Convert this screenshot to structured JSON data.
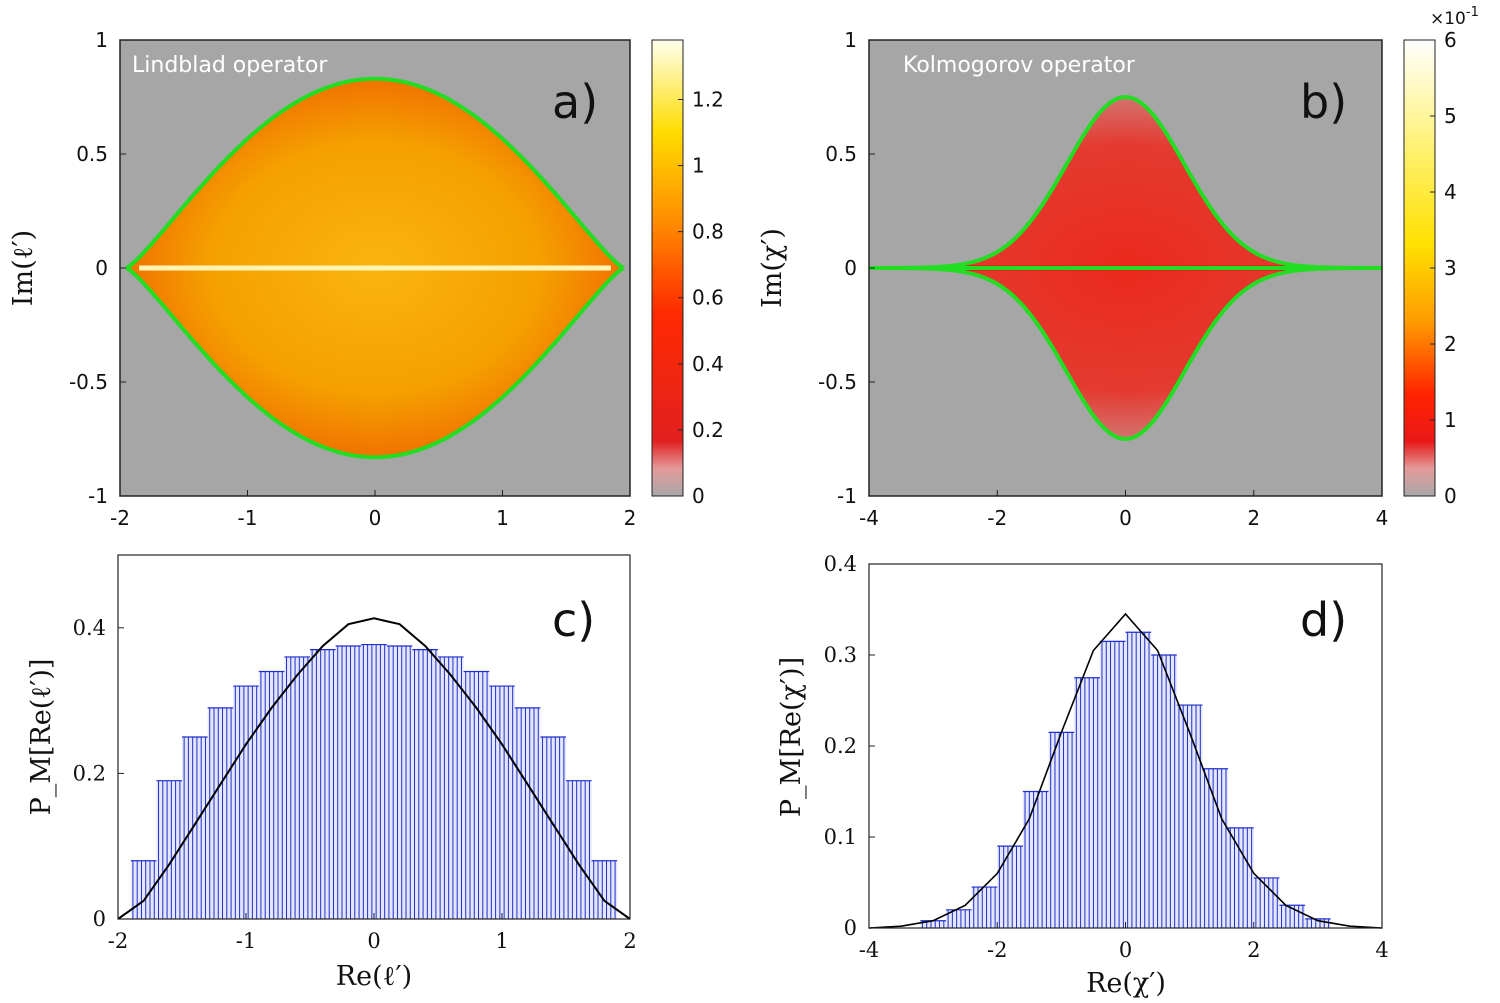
{
  "chart_data": [
    {
      "id": "a",
      "type": "heatmap",
      "panel_label": "a)",
      "title": "Lindblad operator",
      "xlabel": "",
      "ylabel": "Im(ℓ′)",
      "xlim": [
        -2,
        2
      ],
      "ylim": [
        -1,
        1
      ],
      "xticks": [
        "-2",
        "-1",
        "0",
        "1",
        "2"
      ],
      "yticks": [
        "-1",
        "-0.5",
        "0",
        "0.5",
        "1"
      ],
      "boundary": {
        "half_width": 1.95,
        "max_im": 0.83,
        "color": "#22dd22"
      },
      "colorbar": {
        "min": 0,
        "max": 1.38,
        "ticks": [
          "0",
          "0.2",
          "0.4",
          "0.6",
          "0.8",
          "1",
          "1.2"
        ],
        "exponent_label": ""
      },
      "colors": {
        "background": "#a6a6a6",
        "fill": "#f7a600",
        "edge": "#ee3a00",
        "axis_line": "#ffffcc"
      }
    },
    {
      "id": "b",
      "type": "heatmap",
      "panel_label": "b)",
      "title": "Kolmogorov operator",
      "xlabel": "",
      "ylabel": "Im(χ′)",
      "xlim": [
        -4,
        4
      ],
      "ylim": [
        -1,
        1
      ],
      "xticks": [
        "-4",
        "-2",
        "0",
        "2",
        "4"
      ],
      "yticks": [
        "-1",
        "-0.5",
        "0",
        "0.5",
        "1"
      ],
      "boundary": {
        "half_width": 4,
        "max_im": 0.75,
        "color": "#22dd22"
      },
      "colorbar": {
        "min": 0,
        "max": 6,
        "ticks": [
          "0",
          "1",
          "2",
          "3",
          "4",
          "5",
          "6"
        ],
        "exponent_label": "×10",
        "exponent_power": "-1"
      },
      "colors": {
        "background": "#a6a6a6",
        "fill": "#e82a1c",
        "edge": "#c9a3a3",
        "axis_line": "#ffee55"
      }
    },
    {
      "id": "c",
      "type": "bar",
      "panel_label": "c)",
      "xlabel": "Re(ℓ′)",
      "ylabel": "P_M[Re(ℓ′)]",
      "xlim": [
        -2,
        2
      ],
      "ylim": [
        0,
        0.5
      ],
      "xticks": [
        "-2",
        "-1",
        "0",
        "1",
        "2"
      ],
      "yticks": [
        "0",
        "0.2",
        "0.4"
      ],
      "histogram": {
        "x": [
          -1.8,
          -1.6,
          -1.4,
          -1.2,
          -1.0,
          -0.8,
          -0.6,
          -0.4,
          -0.2,
          0.0,
          0.2,
          0.4,
          0.6,
          0.8,
          1.0,
          1.2,
          1.4,
          1.6,
          1.8
        ],
        "values": [
          0.08,
          0.19,
          0.25,
          0.29,
          0.32,
          0.34,
          0.36,
          0.37,
          0.375,
          0.377,
          0.375,
          0.37,
          0.36,
          0.34,
          0.32,
          0.29,
          0.25,
          0.19,
          0.08
        ],
        "color": "#1f2fd1"
      },
      "curve": {
        "x": [
          -2.0,
          -1.8,
          -1.6,
          -1.4,
          -1.2,
          -1.0,
          -0.8,
          -0.6,
          -0.4,
          -0.2,
          0.0,
          0.2,
          0.4,
          0.6,
          0.8,
          1.0,
          1.2,
          1.4,
          1.6,
          1.8,
          2.0
        ],
        "values": [
          0.0,
          0.025,
          0.075,
          0.13,
          0.185,
          0.24,
          0.29,
          0.335,
          0.375,
          0.405,
          0.413,
          0.405,
          0.375,
          0.335,
          0.29,
          0.24,
          0.185,
          0.13,
          0.075,
          0.025,
          0.0
        ],
        "color": "#000000"
      }
    },
    {
      "id": "d",
      "type": "bar",
      "panel_label": "d)",
      "xlabel": "Re(χ′)",
      "ylabel": "P_M[Re(χ′)]",
      "xlim": [
        -4,
        4
      ],
      "ylim": [
        0,
        0.4
      ],
      "xticks": [
        "-4",
        "-2",
        "0",
        "2",
        "4"
      ],
      "yticks": [
        "0",
        "0.1",
        "0.2",
        "0.3",
        "0.4"
      ],
      "histogram": {
        "x": [
          -3.0,
          -2.6,
          -2.2,
          -1.8,
          -1.4,
          -1.0,
          -0.6,
          -0.2,
          0.2,
          0.6,
          1.0,
          1.4,
          1.8,
          2.2,
          2.6,
          3.0
        ],
        "values": [
          0.008,
          0.02,
          0.045,
          0.09,
          0.15,
          0.215,
          0.275,
          0.315,
          0.325,
          0.3,
          0.245,
          0.175,
          0.11,
          0.055,
          0.025,
          0.01
        ],
        "color": "#1f2fd1"
      },
      "curve": {
        "x": [
          -4.0,
          -3.5,
          -3.0,
          -2.5,
          -2.0,
          -1.5,
          -1.0,
          -0.5,
          0.0,
          0.5,
          1.0,
          1.5,
          2.0,
          2.5,
          3.0,
          3.5,
          4.0
        ],
        "values": [
          0.0,
          0.002,
          0.008,
          0.025,
          0.06,
          0.12,
          0.215,
          0.305,
          0.345,
          0.305,
          0.215,
          0.12,
          0.06,
          0.025,
          0.008,
          0.002,
          0.0
        ],
        "color": "#000000"
      }
    }
  ]
}
